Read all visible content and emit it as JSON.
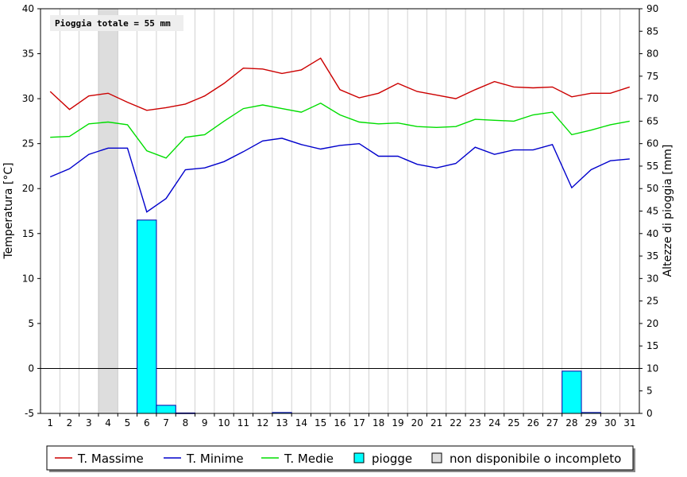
{
  "chart_data": {
    "type": "line",
    "annotation": "Pioggia totale = 55 mm",
    "ylabel": "Temperatura [°C]",
    "y2label": "Altezze di pioggia [mm]",
    "ylim": [
      -5,
      40
    ],
    "y2lim": [
      0,
      90
    ],
    "y_ticks": [
      40,
      35,
      30,
      25,
      20,
      15,
      10,
      5,
      0,
      -5
    ],
    "y2_ticks": [
      90,
      85,
      80,
      75,
      70,
      65,
      60,
      55,
      50,
      45,
      40,
      35,
      30,
      25,
      20,
      15,
      10,
      5,
      0
    ],
    "x": [
      1,
      2,
      3,
      4,
      5,
      6,
      7,
      8,
      9,
      10,
      11,
      12,
      13,
      14,
      15,
      16,
      17,
      18,
      19,
      20,
      21,
      22,
      23,
      24,
      25,
      26,
      27,
      28,
      29,
      30,
      31
    ],
    "grid": "vertical",
    "legend_position": "bottom",
    "series": [
      {
        "name": "T. Massime",
        "color": "#cc0000",
        "axis": "left",
        "values": [
          30.8,
          28.8,
          30.3,
          30.6,
          29.6,
          28.7,
          29.0,
          29.4,
          30.3,
          31.7,
          33.4,
          33.3,
          32.8,
          33.2,
          34.5,
          31.0,
          30.1,
          30.6,
          31.7,
          30.8,
          30.4,
          30.0,
          31.0,
          31.9,
          31.3,
          31.2,
          31.3,
          30.2,
          30.6,
          30.6,
          31.3
        ]
      },
      {
        "name": "T. Minime",
        "color": "#0000cc",
        "axis": "left",
        "values": [
          21.3,
          22.2,
          23.8,
          24.5,
          24.5,
          17.4,
          18.9,
          22.1,
          22.3,
          23.0,
          24.1,
          25.3,
          25.6,
          24.9,
          24.4,
          24.8,
          25.0,
          23.6,
          23.6,
          22.7,
          22.3,
          22.8,
          24.6,
          23.8,
          24.3,
          24.3,
          24.9,
          20.1,
          22.1,
          23.1,
          23.3
        ]
      },
      {
        "name": "T. Medie",
        "color": "#00dd00",
        "axis": "left",
        "values": [
          25.7,
          25.8,
          27.2,
          27.4,
          27.1,
          24.2,
          23.4,
          25.7,
          26.0,
          27.5,
          28.9,
          29.3,
          28.9,
          28.5,
          29.5,
          28.2,
          27.4,
          27.2,
          27.3,
          26.9,
          26.8,
          26.9,
          27.7,
          27.6,
          27.5,
          28.2,
          28.5,
          26.0,
          26.5,
          27.1,
          27.5
        ]
      },
      {
        "name": "piogge",
        "type": "bar",
        "color": "#00ffff",
        "axis": "right",
        "values": [
          0,
          0,
          0,
          0,
          0,
          43.0,
          1.8,
          0.1,
          0,
          0,
          0,
          0,
          0.2,
          0,
          0,
          0,
          0,
          0,
          0,
          0,
          0,
          0,
          0,
          0,
          0,
          0,
          0,
          9.4,
          0.2,
          0,
          0
        ]
      },
      {
        "name": "non disponibile o incompleto",
        "type": "band",
        "color": "#dddddd",
        "days": [
          4
        ]
      }
    ]
  }
}
